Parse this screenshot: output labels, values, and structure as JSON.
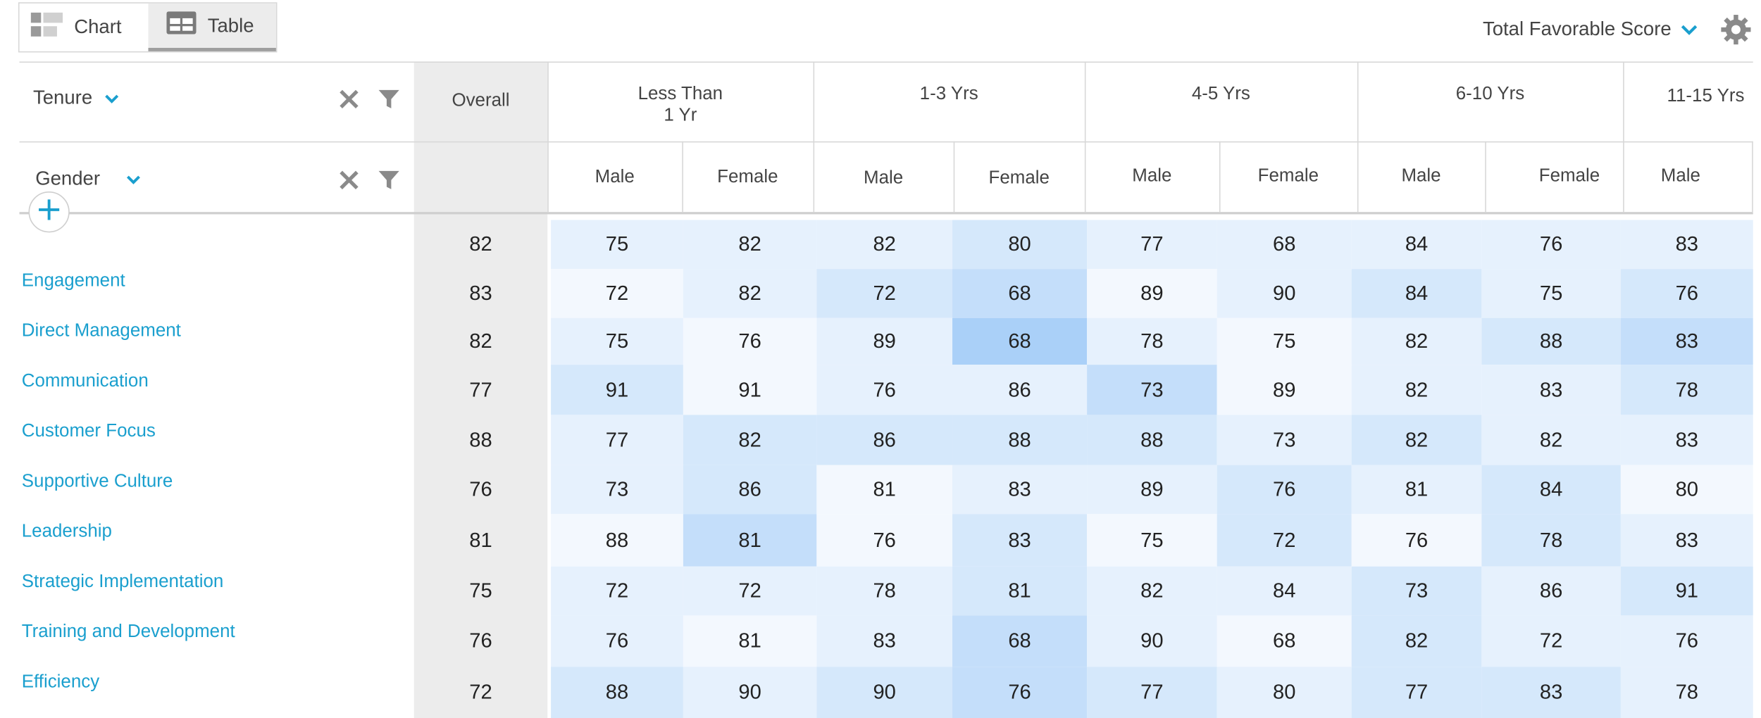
{
  "view_toggle": {
    "chart_label": "Chart",
    "table_label": "Table",
    "active": "Table"
  },
  "metric": {
    "label": "Total Favorable Score"
  },
  "dimensions": {
    "primary": "Tenure",
    "secondary": "Gender"
  },
  "headers": {
    "overall": "Overall",
    "groups": [
      {
        "line1": "Less Than",
        "line2": "1 Yr"
      },
      {
        "line1": "1-3 Yrs",
        "line2": ""
      },
      {
        "line1": "4-5 Yrs",
        "line2": ""
      },
      {
        "line1": "6-10 Yrs",
        "line2": ""
      },
      {
        "line1": "11-15 Yrs",
        "line2": ""
      }
    ],
    "subcols": [
      "Male",
      "Female",
      "Male",
      "Female",
      "Male",
      "Female",
      "Male",
      "Female",
      "Male"
    ]
  },
  "rows": [
    {
      "label": "",
      "overall": "82",
      "values": [
        "75",
        "82",
        "82",
        "80",
        "77",
        "68",
        "84",
        "76",
        "83"
      ],
      "shades": [
        1,
        1,
        1,
        2,
        1,
        1,
        1,
        1,
        1
      ]
    },
    {
      "label": "Engagement",
      "overall": "83",
      "values": [
        "72",
        "82",
        "72",
        "68",
        "89",
        "90",
        "84",
        "75",
        "76"
      ],
      "shades": [
        0,
        1,
        2,
        3,
        0,
        1,
        2,
        1,
        2
      ]
    },
    {
      "label": "Direct Management",
      "overall": "82",
      "values": [
        "75",
        "76",
        "89",
        "68",
        "78",
        "75",
        "82",
        "88",
        "83"
      ],
      "shades": [
        1,
        0,
        1,
        4,
        1,
        0,
        1,
        2,
        3
      ]
    },
    {
      "label": "Communication",
      "overall": "77",
      "values": [
        "91",
        "91",
        "76",
        "86",
        "73",
        "89",
        "82",
        "83",
        "78"
      ],
      "shades": [
        2,
        0,
        1,
        1,
        3,
        0,
        1,
        1,
        2
      ]
    },
    {
      "label": "Customer Focus",
      "overall": "88",
      "values": [
        "77",
        "82",
        "86",
        "88",
        "88",
        "73",
        "82",
        "82",
        "83"
      ],
      "shades": [
        1,
        2,
        2,
        2,
        2,
        1,
        2,
        1,
        1
      ]
    },
    {
      "label": "Supportive Culture",
      "overall": "76",
      "values": [
        "73",
        "86",
        "81",
        "83",
        "89",
        "76",
        "81",
        "84",
        "80"
      ],
      "shades": [
        1,
        2,
        0,
        1,
        1,
        2,
        1,
        2,
        0
      ]
    },
    {
      "label": "Leadership",
      "overall": "81",
      "values": [
        "88",
        "81",
        "76",
        "83",
        "75",
        "72",
        "76",
        "78",
        "83"
      ],
      "shades": [
        0,
        3,
        0,
        2,
        0,
        2,
        0,
        2,
        1
      ]
    },
    {
      "label": "Strategic Implementation",
      "overall": "75",
      "values": [
        "72",
        "72",
        "78",
        "81",
        "82",
        "84",
        "73",
        "86",
        "91"
      ],
      "shades": [
        1,
        1,
        1,
        2,
        1,
        1,
        2,
        1,
        2
      ]
    },
    {
      "label": "Training and Development",
      "overall": "76",
      "values": [
        "76",
        "81",
        "83",
        "68",
        "90",
        "68",
        "82",
        "72",
        "76"
      ],
      "shades": [
        1,
        0,
        1,
        3,
        1,
        0,
        2,
        1,
        1
      ]
    },
    {
      "label": "Efficiency",
      "overall": "72",
      "values": [
        "88",
        "90",
        "90",
        "76",
        "77",
        "80",
        "77",
        "83",
        "78"
      ],
      "shades": [
        2,
        1,
        2,
        3,
        2,
        1,
        2,
        2,
        1
      ]
    }
  ],
  "colors": {
    "accent": "#1a9fce",
    "overall_bg": "#ececec",
    "heat": [
      "#f3f8fe",
      "#e6f1fd",
      "#d5e8fb",
      "#c4defa",
      "#aad0f8"
    ]
  },
  "icons": {
    "chart": "chart-icon",
    "table": "table-icon",
    "chevron": "chevron-down-icon",
    "settings": "gear-icon",
    "clear": "close-icon",
    "filter": "filter-icon",
    "add": "plus-icon"
  }
}
